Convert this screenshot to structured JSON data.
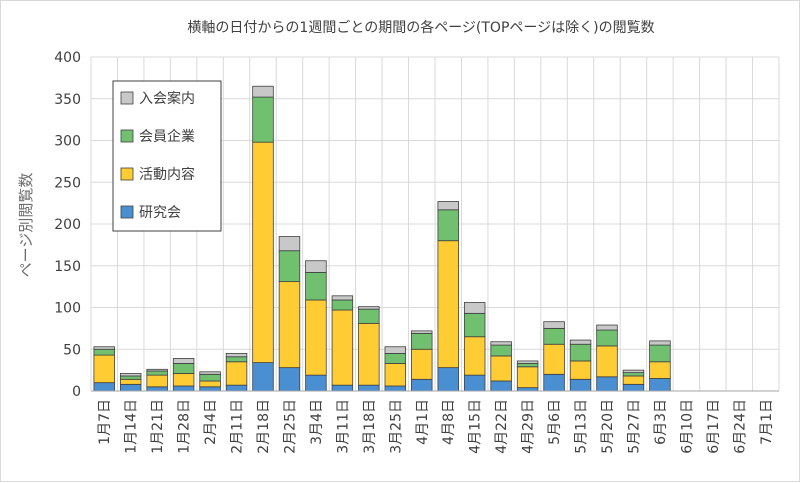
{
  "chart_data": {
    "type": "bar",
    "stacked": true,
    "title": "横軸の日付からの1週間ごとの期間の各ページ(TOPページは除く)の閲覧数",
    "xlabel": "",
    "ylabel": "ページ別閲覧数",
    "ylim": [
      0,
      400
    ],
    "yticks": [
      "0",
      "50",
      "100",
      "150",
      "200",
      "250",
      "300",
      "350",
      "400"
    ],
    "grid": true,
    "legend_position": "top-left",
    "categories": [
      "1月7日",
      "1月14日",
      "1月21日",
      "1月28日",
      "2月4日",
      "2月11日",
      "2月18日",
      "2月25日",
      "3月4日",
      "3月11日",
      "3月18日",
      "3月25日",
      "4月1日",
      "4月8日",
      "4月15日",
      "4月22日",
      "4月29日",
      "5月6日",
      "5月13日",
      "5月20日",
      "5月27日",
      "6月3日",
      "6月10日",
      "6月17日",
      "6月24日",
      "7月1日"
    ],
    "series": [
      {
        "name": "研究会",
        "color": "#4a8fd1",
        "values": [
          10,
          8,
          5,
          6,
          5,
          7,
          34,
          28,
          19,
          7,
          7,
          6,
          14,
          28,
          19,
          12,
          4,
          20,
          14,
          17,
          8,
          15,
          0,
          0,
          0,
          0
        ]
      },
      {
        "name": "活動内容",
        "color": "#ffcc33",
        "values": [
          33,
          6,
          14,
          15,
          7,
          28,
          264,
          103,
          90,
          90,
          74,
          27,
          36,
          152,
          46,
          30,
          25,
          36,
          22,
          37,
          10,
          20,
          0,
          0,
          0,
          0
        ]
      },
      {
        "name": "会員企業",
        "color": "#70c070",
        "values": [
          7,
          4,
          5,
          12,
          8,
          6,
          54,
          37,
          33,
          12,
          17,
          12,
          19,
          37,
          28,
          13,
          4,
          19,
          20,
          19,
          4,
          20,
          0,
          0,
          0,
          0
        ]
      },
      {
        "name": "入会案内",
        "color": "#c8c8c8",
        "values": [
          3,
          3,
          2,
          6,
          3,
          4,
          13,
          17,
          14,
          5,
          3,
          8,
          3,
          10,
          13,
          4,
          3,
          8,
          5,
          6,
          3,
          5,
          0,
          0,
          0,
          0
        ]
      }
    ]
  }
}
